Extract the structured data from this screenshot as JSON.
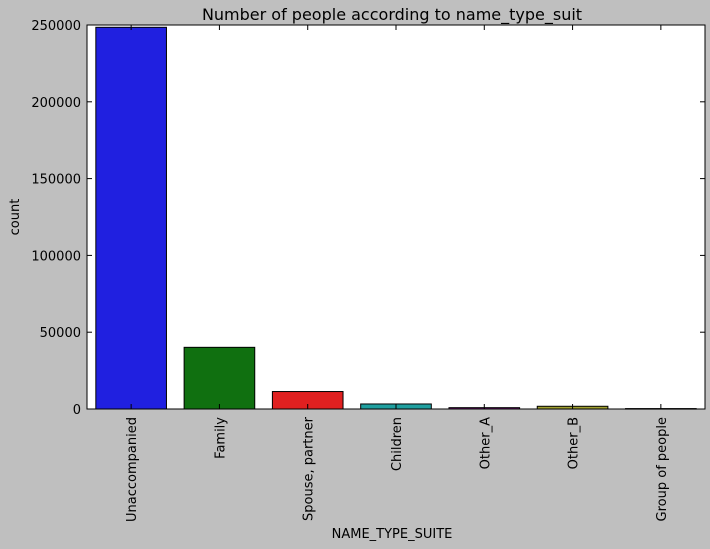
{
  "chart_data": {
    "type": "bar",
    "title": "Number of people according to name_type_suit",
    "xlabel": "NAME_TYPE_SUITE",
    "ylabel": "count",
    "ylim": [
      0,
      250000
    ],
    "yticks": [
      0,
      50000,
      100000,
      150000,
      200000,
      250000
    ],
    "categories": [
      "Unaccompanied",
      "Family",
      "Spouse, partner",
      "Children",
      "Other_A",
      "Other_B",
      "Group of people"
    ],
    "values": [
      248500,
      40150,
      11370,
      3270,
      866,
      1770,
      271
    ],
    "colors": [
      "#2020e0",
      "#107010",
      "#e02020",
      "#20a0a0",
      "#901090",
      "#a0a030",
      "#202020"
    ],
    "grid": false,
    "background": "#bfbfbf",
    "plot_background": "#ffffff"
  }
}
